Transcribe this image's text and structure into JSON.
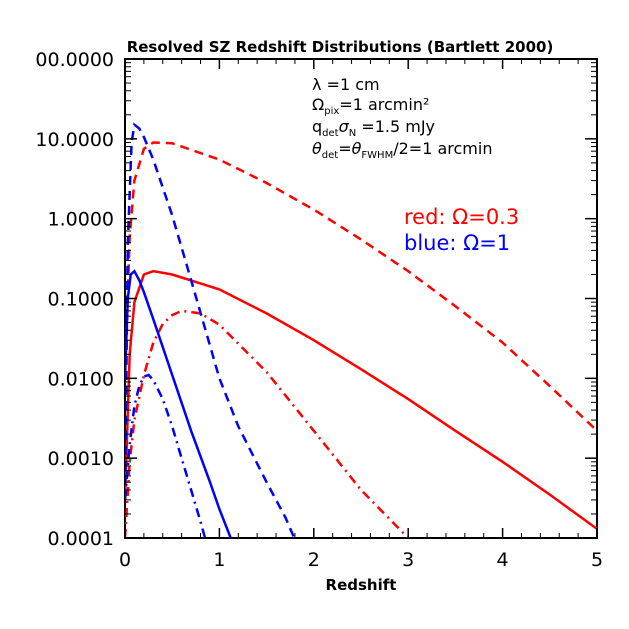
{
  "chart_data": {
    "type": "line",
    "title": "Resolved SZ Redshift Distributions (Bartlett 2000)",
    "xlabel": "Redshift",
    "ylabel": "",
    "xlim": [
      0,
      5
    ],
    "ylim": [
      0.0001,
      100
    ],
    "yscale": "log",
    "grid": false,
    "x_ticks": [
      "0",
      "1",
      "2",
      "3",
      "4",
      "5"
    ],
    "y_ticks": [
      "0.0001",
      "0.0010",
      "0.0100",
      "0.1000",
      "1.0000",
      "10.0000",
      "00.0000"
    ],
    "annotations": {
      "line1": "λ  =1 cm",
      "line2_main": "Ω",
      "line2_sub": "pix",
      "line2_rest": "=1 arcmin²",
      "line3_main": "q",
      "line3_sub1": "det",
      "line3_sigma": "σ",
      "line3_sub2": "N",
      "line3_rest": " =1.5 mJy",
      "line4_theta": "θ",
      "line4_sub1": "det",
      "line4_eq": "=θ",
      "line4_sub2": "FWHM",
      "line4_rest": "/2=1 arcmin"
    },
    "legend": {
      "placement": "top-right",
      "red": "red:  Ω=0.3",
      "blue": "blue: Ω=1"
    },
    "colors": {
      "red": "#ff0000",
      "blue": "#0000ff",
      "axis": "#000000"
    },
    "series": [
      {
        "color": "red",
        "style": "dashed",
        "x": [
          0,
          0.05,
          0.1,
          0.2,
          0.3,
          0.5,
          1.0,
          1.5,
          2.0,
          2.5,
          3.0,
          3.5,
          4.0,
          4.5,
          5.0
        ],
        "y": [
          0.01,
          0.6,
          3.0,
          7.5,
          9.0,
          8.8,
          5.5,
          2.8,
          1.3,
          0.55,
          0.22,
          0.08,
          0.028,
          0.008,
          0.0022
        ]
      },
      {
        "color": "red",
        "style": "solid",
        "x": [
          0,
          0.05,
          0.1,
          0.2,
          0.3,
          0.5,
          1.0,
          1.5,
          2.0,
          2.5,
          3.0,
          3.5,
          4.0,
          4.5,
          5.0
        ],
        "y": [
          0.0003,
          0.02,
          0.09,
          0.2,
          0.22,
          0.2,
          0.13,
          0.065,
          0.03,
          0.013,
          0.0055,
          0.0022,
          0.0009,
          0.00035,
          0.00013
        ]
      },
      {
        "color": "red",
        "style": "dashdot",
        "x": [
          0,
          0.05,
          0.1,
          0.2,
          0.3,
          0.4,
          0.5,
          0.6,
          0.8,
          1.0,
          1.5,
          2.0,
          2.5,
          3.0,
          3.15
        ],
        "y": [
          0.0001,
          0.0009,
          0.003,
          0.011,
          0.028,
          0.048,
          0.062,
          0.07,
          0.065,
          0.047,
          0.012,
          0.0022,
          0.0004,
          0.0001,
          6e-05
        ]
      },
      {
        "color": "blue",
        "style": "dashed",
        "x": [
          0,
          0.03,
          0.07,
          0.1,
          0.15,
          0.2,
          0.3,
          0.5,
          0.7,
          1.0,
          1.2,
          1.5,
          1.7,
          1.85
        ],
        "y": [
          0.0003,
          0.5,
          9.0,
          15.0,
          13.5,
          10.5,
          5.5,
          1.1,
          0.17,
          0.01,
          0.0025,
          0.0005,
          0.00018,
          7e-05
        ]
      },
      {
        "color": "blue",
        "style": "solid",
        "x": [
          0,
          0.03,
          0.06,
          0.1,
          0.15,
          0.2,
          0.3,
          0.5,
          0.7,
          0.9,
          1.0,
          1.12
        ],
        "y": [
          0.01,
          0.1,
          0.2,
          0.22,
          0.17,
          0.12,
          0.055,
          0.011,
          0.0022,
          0.0005,
          0.00023,
          0.0001
        ]
      },
      {
        "color": "blue",
        "style": "dashdot",
        "x": [
          0,
          0.05,
          0.1,
          0.15,
          0.2,
          0.25,
          0.3,
          0.4,
          0.5,
          0.6,
          0.7,
          0.8,
          0.9
        ],
        "y": [
          0.0003,
          0.0015,
          0.0045,
          0.008,
          0.0105,
          0.011,
          0.0095,
          0.0055,
          0.0025,
          0.001,
          0.0004,
          0.00016,
          6e-05
        ]
      }
    ]
  }
}
